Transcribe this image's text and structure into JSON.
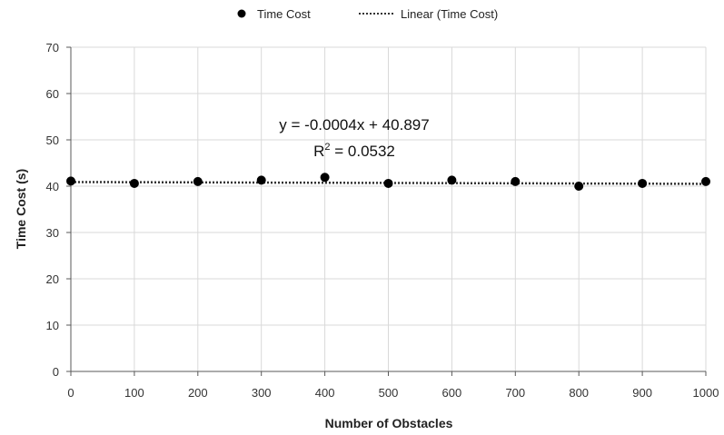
{
  "chart_data": {
    "type": "scatter",
    "title": "",
    "xlabel": "Number of Obstacles",
    "ylabel": "Time Cost (s)",
    "xlim": [
      0,
      1000
    ],
    "ylim": [
      0,
      70
    ],
    "xticks": [
      0,
      100,
      200,
      300,
      400,
      500,
      600,
      700,
      800,
      900,
      1000
    ],
    "yticks": [
      0,
      10,
      20,
      30,
      40,
      50,
      60,
      70
    ],
    "grid": true,
    "legend_position": "top",
    "series": [
      {
        "name": "Time Cost",
        "color": "#000000",
        "x": [
          0,
          100,
          200,
          300,
          400,
          500,
          600,
          700,
          800,
          900,
          1000
        ],
        "y": [
          41.1,
          40.6,
          41.0,
          41.3,
          41.9,
          40.6,
          41.3,
          41.0,
          40.0,
          40.6,
          41.0
        ]
      }
    ],
    "trendline": {
      "name": "Linear (Time Cost)",
      "type": "linear",
      "slope": -0.0004,
      "intercept": 40.897,
      "r_squared": 0.0532,
      "equation_label": "y = -0.0004x + 40.897",
      "r2_prefix": "R",
      "r2_sup": "2",
      "r2_value": " = 0.0532",
      "color": "#333333",
      "style": "dotted"
    }
  }
}
